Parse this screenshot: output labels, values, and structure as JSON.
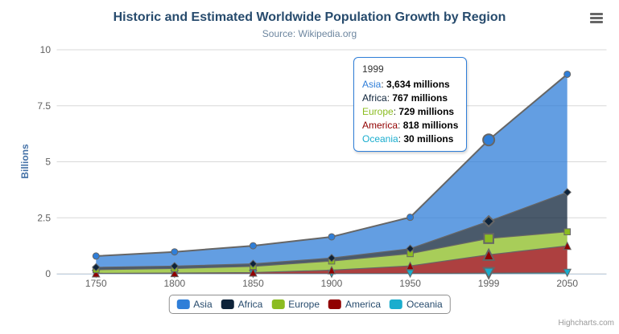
{
  "header": {
    "title": "Historic and Estimated Worldwide Population Growth by Region",
    "subtitle": "Source: Wikipedia.org"
  },
  "credits": "Highcharts.com",
  "ui_colors": {
    "grid": "#d8d8d8",
    "axis_line": "#c0d0e0",
    "series_outline": "#666666",
    "axis_label": "#606060",
    "title": "#274b6d",
    "subtitle": "#6d869f",
    "y_axis_title": "#4572a7",
    "legend_border": "#909090",
    "legend_text": "#274b6d",
    "tooltip_border": "#2f7ed8",
    "credits": "#999999"
  },
  "chart_data": {
    "type": "area",
    "stacking": "normal",
    "title": "Historic and Estimated Worldwide Population Growth by Region",
    "subtitle": "Source: Wikipedia.org",
    "ylabel": "Billions",
    "xlabel": "",
    "units": "millions",
    "ylim": [
      0,
      10
    ],
    "yticks": [
      0,
      2.5,
      5,
      7.5,
      10
    ],
    "grid": "horizontal",
    "legend_position": "bottom",
    "categories": [
      "1750",
      "1800",
      "1850",
      "1900",
      "1950",
      "1999",
      "2050"
    ],
    "series": [
      {
        "name": "Asia",
        "color": "#2f7ed8",
        "marker": "circle",
        "values": [
          502,
          635,
          809,
          947,
          1402,
          3634,
          5268
        ]
      },
      {
        "name": "Africa",
        "color": "#0d233a",
        "marker": "diamond",
        "values": [
          106,
          107,
          111,
          133,
          221,
          767,
          1766
        ]
      },
      {
        "name": "Europe",
        "color": "#8bbc21",
        "marker": "square",
        "values": [
          163,
          203,
          276,
          408,
          547,
          729,
          628
        ]
      },
      {
        "name": "America",
        "color": "#910000",
        "marker": "triangle",
        "values": [
          18,
          31,
          54,
          156,
          339,
          818,
          1201
        ]
      },
      {
        "name": "Oceania",
        "color": "#1aadce",
        "marker": "triangle-down",
        "values": [
          2,
          2,
          2,
          6,
          13,
          30,
          46
        ]
      }
    ],
    "stack_order_bottom_to_top": [
      "Oceania",
      "America",
      "Europe",
      "Africa",
      "Asia"
    ],
    "fill_opacity": 0.75,
    "hover_index": 5,
    "hover_series": "Asia"
  },
  "tooltip": {
    "header": "1999",
    "suffix": "millions",
    "rows": [
      {
        "name": "Asia",
        "color": "#2f7ed8",
        "value": "3,634"
      },
      {
        "name": "Africa",
        "color": "#0d233a",
        "value": "767"
      },
      {
        "name": "Europe",
        "color": "#8bbc21",
        "value": "729"
      },
      {
        "name": "America",
        "color": "#910000",
        "value": "818"
      },
      {
        "name": "Oceania",
        "color": "#1aadce",
        "value": "30"
      }
    ]
  },
  "legend": {
    "items": [
      {
        "label": "Asia",
        "color": "#2f7ed8"
      },
      {
        "label": "Africa",
        "color": "#0d233a"
      },
      {
        "label": "Europe",
        "color": "#8bbc21"
      },
      {
        "label": "America",
        "color": "#910000"
      },
      {
        "label": "Oceania",
        "color": "#1aadce"
      }
    ]
  }
}
